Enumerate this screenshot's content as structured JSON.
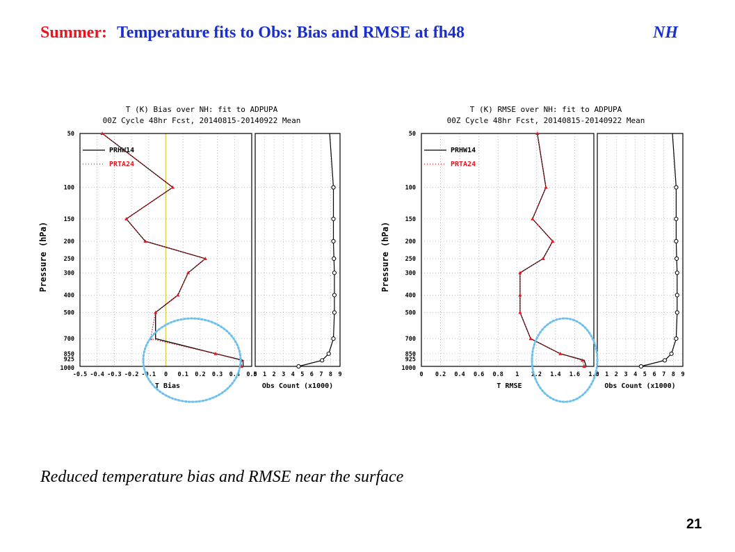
{
  "slide": {
    "title_season": "Summer:",
    "title_main": "Temperature fits to Obs:  Bias and RMSE at fh48",
    "title_region": "NH",
    "caption": "Reduced temperature bias and RMSE near the surface",
    "page_number": "21"
  },
  "colors": {
    "title_season": "#e8141e",
    "title_main": "#1a2fd1",
    "series_prhw14": "#000000",
    "series_prta24": "#e8141e",
    "zero_line": "#d8d24a",
    "highlight_circle": "#6cc0ee"
  },
  "chart_data": [
    {
      "type": "line",
      "title": "T (K) Bias over NH: fit to ADPUPA",
      "subtitle": "00Z Cycle 48hr Fcst, 20140815-20140922 Mean",
      "xlabel": "T Bias",
      "ylabel": "Pressure (hPa)",
      "xlim": [
        -0.5,
        0.5
      ],
      "x_ticks": [
        -0.5,
        -0.4,
        -0.3,
        -0.2,
        -0.1,
        0,
        0.1,
        0.2,
        0.3,
        0.4,
        0.5
      ],
      "x_tick_labels": [
        "-0.5",
        "-0.4",
        "-0.3",
        "-0.2",
        "-0.1",
        "0",
        "0.1",
        "0.2",
        "0.3",
        "0.4",
        "0.5"
      ],
      "y_scale": "log",
      "ylim": [
        1000,
        50
      ],
      "pressure_levels": [
        50,
        100,
        150,
        200,
        250,
        300,
        400,
        500,
        700,
        850,
        925,
        1000
      ],
      "y_tick_labels": [
        "50",
        "100",
        "150",
        "200",
        "250",
        "300",
        "400",
        "500",
        "700",
        "850",
        "925",
        "1000"
      ],
      "zero_line": true,
      "legend": "top-left",
      "series": [
        {
          "name": "PRHW14",
          "style": "solid",
          "values": [
            -0.37,
            0.04,
            -0.23,
            -0.12,
            0.23,
            0.13,
            0.07,
            -0.06,
            -0.06,
            0.29,
            0.45,
            0.45
          ]
        },
        {
          "name": "PRTA24",
          "style": "dotted",
          "values": [
            -0.37,
            0.04,
            -0.23,
            -0.12,
            0.23,
            0.13,
            0.07,
            -0.06,
            -0.09,
            0.29,
            0.44,
            0.44
          ]
        }
      ],
      "obs_count": {
        "xlabel": "Obs Count (x1000)",
        "xlim": [
          0,
          9
        ],
        "x_tick_labels": [
          "0",
          "1",
          "2",
          "3",
          "4",
          "5",
          "6",
          "7",
          "8",
          "9"
        ],
        "values": [
          7.9,
          8.3,
          8.3,
          8.3,
          8.35,
          8.4,
          8.4,
          8.4,
          8.3,
          7.8,
          7.1,
          4.6
        ]
      },
      "highlight": "near-surface levels circled"
    },
    {
      "type": "line",
      "title": "T (K) RMSE over NH: fit to ADPUPA",
      "subtitle": "00Z Cycle 48hr Fcst, 20140815-20140922 Mean",
      "xlabel": "T RMSE",
      "ylabel": "Pressure (hPa)",
      "xlim": [
        0,
        1.8
      ],
      "x_ticks": [
        0,
        0.2,
        0.4,
        0.6,
        0.8,
        1.0,
        1.2,
        1.4,
        1.6,
        1.8
      ],
      "x_tick_labels": [
        "0",
        "0.2",
        "0.4",
        "0.6",
        "0.8",
        "1",
        "1.2",
        "1.4",
        "1.6",
        "1.8"
      ],
      "y_scale": "log",
      "ylim": [
        1000,
        50
      ],
      "pressure_levels": [
        50,
        100,
        150,
        200,
        250,
        300,
        400,
        500,
        700,
        850,
        925,
        1000
      ],
      "y_tick_labels": [
        "50",
        "100",
        "150",
        "200",
        "250",
        "300",
        "400",
        "500",
        "700",
        "850",
        "925",
        "1000"
      ],
      "legend": "top-left",
      "series": [
        {
          "name": "PRHW14",
          "style": "solid",
          "values": [
            1.21,
            1.3,
            1.16,
            1.37,
            1.27,
            1.03,
            1.03,
            1.03,
            1.14,
            1.45,
            1.7,
            1.72
          ]
        },
        {
          "name": "PRTA24",
          "style": "dotted",
          "values": [
            1.21,
            1.3,
            1.16,
            1.37,
            1.27,
            1.03,
            1.03,
            1.03,
            1.14,
            1.45,
            1.68,
            1.7
          ]
        }
      ],
      "obs_count": {
        "xlabel": "Obs Count (x1000)",
        "xlim": [
          0,
          9
        ],
        "x_tick_labels": [
          "0",
          "1",
          "2",
          "3",
          "4",
          "5",
          "6",
          "7",
          "8",
          "9"
        ],
        "values": [
          7.9,
          8.3,
          8.3,
          8.3,
          8.35,
          8.4,
          8.4,
          8.4,
          8.3,
          7.8,
          7.1,
          4.6
        ]
      },
      "highlight": "near-surface levels circled"
    }
  ]
}
